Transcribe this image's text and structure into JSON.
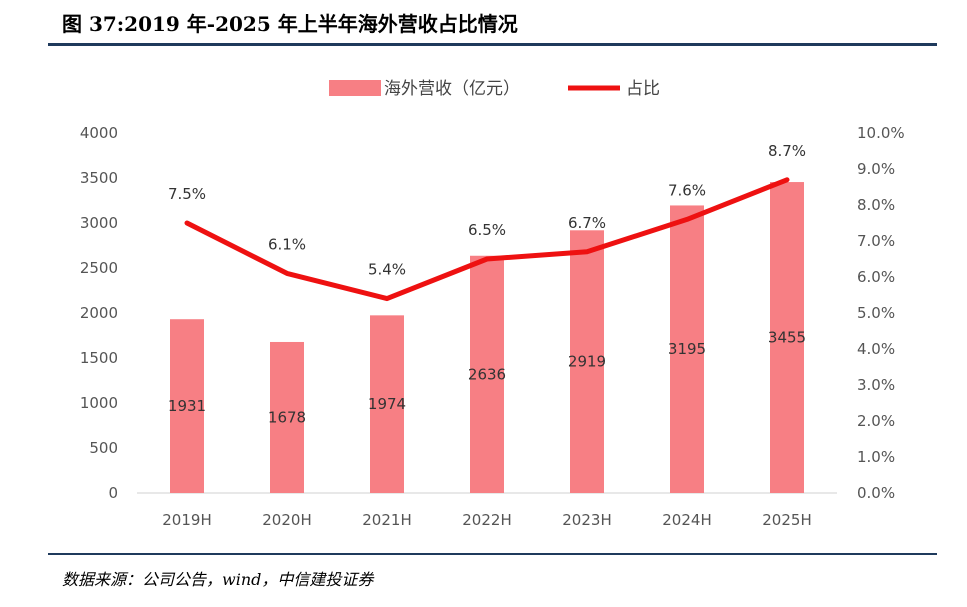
{
  "figure": {
    "title": "图 37:2019 年-2025 年上半年海外营收占比情况",
    "source": "数据来源：公司公告，wind，中信建投证券"
  },
  "chart_data": {
    "type": "bar",
    "categories": [
      "2019H",
      "2020H",
      "2021H",
      "2022H",
      "2023H",
      "2024H",
      "2025H"
    ],
    "series": [
      {
        "name": "海外营收（亿元）",
        "kind": "bar",
        "axis": "left",
        "color": "#f77f84",
        "values": [
          1931,
          1678,
          1974,
          2636,
          2919,
          3195,
          3455
        ],
        "labels": [
          "1931",
          "1678",
          "1974",
          "2636",
          "2919",
          "3195",
          "3455"
        ]
      },
      {
        "name": "占比",
        "kind": "line",
        "axis": "right",
        "color": "#ee1111",
        "values": [
          7.5,
          6.1,
          5.4,
          6.5,
          6.7,
          7.6,
          8.7
        ],
        "labels": [
          "7.5%",
          "6.1%",
          "5.4%",
          "6.5%",
          "6.7%",
          "7.6%",
          "8.7%"
        ]
      }
    ],
    "y_left": {
      "ylim": [
        0,
        4000
      ],
      "ticks": [
        "0",
        "500",
        "1000",
        "1500",
        "2000",
        "2500",
        "3000",
        "3500",
        "4000"
      ]
    },
    "y_right": {
      "ylim": [
        0,
        10
      ],
      "ticks": [
        "0.0%",
        "1.0%",
        "2.0%",
        "3.0%",
        "4.0%",
        "5.0%",
        "6.0%",
        "7.0%",
        "8.0%",
        "9.0%",
        "10.0%"
      ]
    },
    "grid": false,
    "legend": "top-center"
  }
}
